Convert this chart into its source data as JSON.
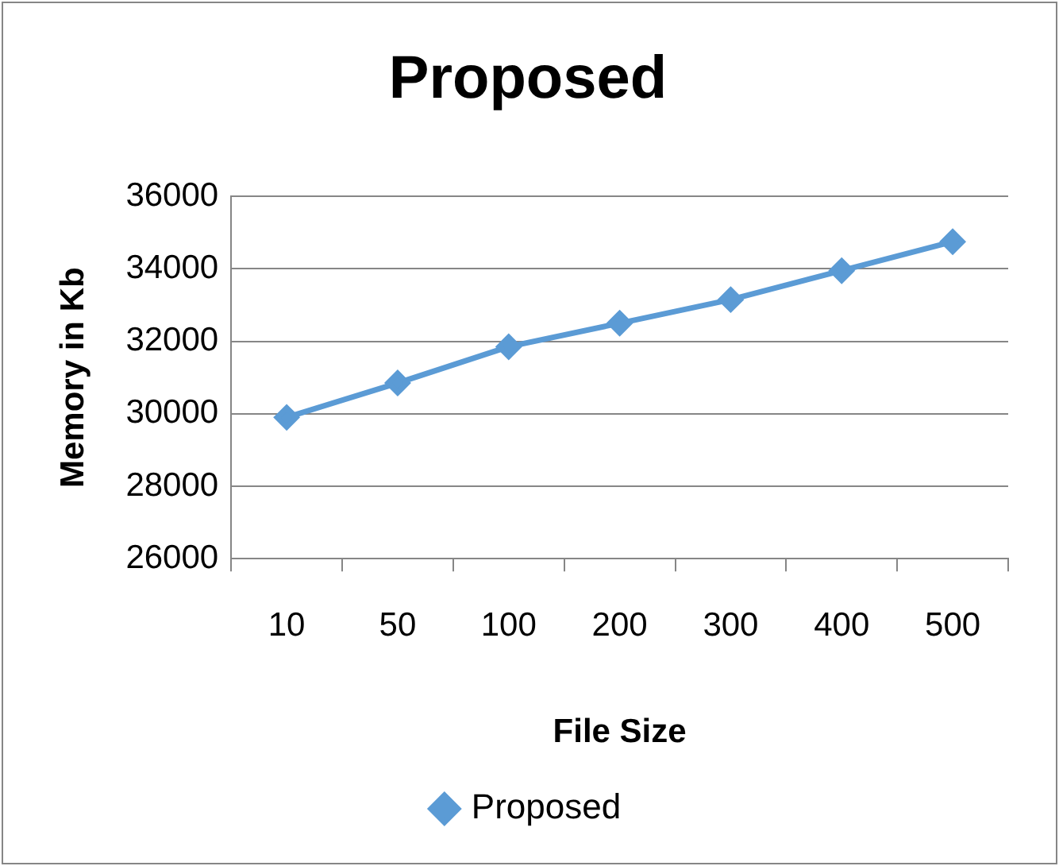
{
  "chart_data": {
    "type": "line",
    "title": "Proposed",
    "xlabel": "File Size",
    "ylabel": "Memory in Kb",
    "categories": [
      "10",
      "50",
      "100",
      "200",
      "300",
      "400",
      "500"
    ],
    "series": [
      {
        "name": "Proposed",
        "color": "#5b9bd5",
        "values": [
          29900,
          30850,
          31850,
          32500,
          33150,
          33950,
          34750
        ]
      }
    ],
    "ylim": [
      26000,
      36000
    ],
    "yticks": [
      26000,
      28000,
      30000,
      32000,
      34000,
      36000
    ],
    "grid": "y",
    "legend": "bottom",
    "marker": "diamond",
    "line_style": "solid"
  }
}
